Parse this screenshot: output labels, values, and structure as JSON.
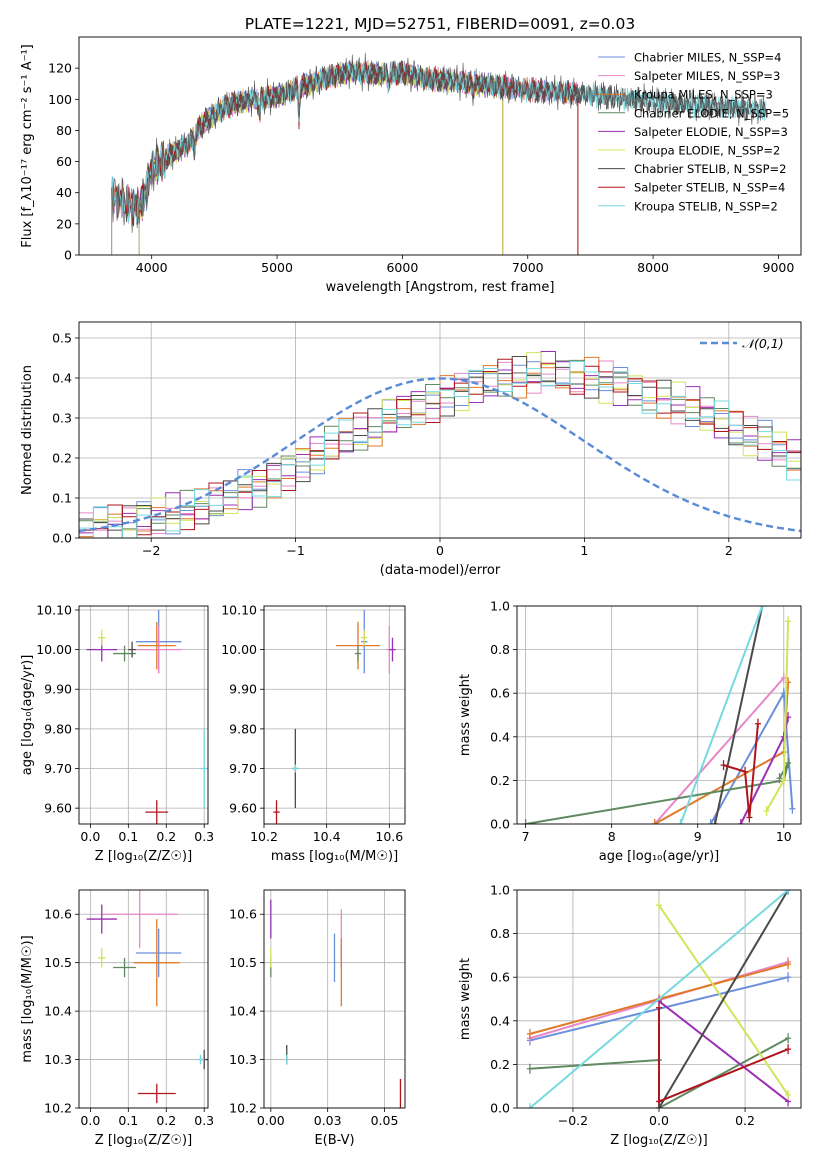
{
  "colors": [
    "#6b8fdc",
    "#e887c8",
    "#e07a2a",
    "#5f8a60",
    "#9b2fb5",
    "#d4e35a",
    "#4a4a4a",
    "#b0151e",
    "#76d9e0"
  ],
  "figure_title": "PLATE=1221, MJD=52751, FIBERID=0091, z=0.03",
  "chart_data": [
    {
      "id": "spectrum",
      "type": "line",
      "title": "PLATE=1221, MJD=52751, FIBERID=0091, z=0.03",
      "xlabel": "wavelength [Angstrom, rest frame]",
      "ylabel": "Flux [f_λ10⁻¹⁷ erg cm⁻² s⁻¹ A⁻¹]",
      "xlim": [
        3420,
        9180
      ],
      "ylim": [
        0,
        140
      ],
      "xticks": [
        4000,
        5000,
        6000,
        7000,
        8000,
        9000
      ],
      "yticks": [
        0,
        20,
        40,
        60,
        80,
        100,
        120
      ],
      "legend_position": "top-right",
      "legend": [
        "Chabrier MILES, N_SSP=4",
        "Salpeter MILES, N_SSP=3",
        "Kroupa MILES, N_SSP=3",
        "Chabrier ELODIE, N_SSP=5",
        "Salpeter ELODIE, N_SSP=3",
        "Kroupa ELODIE, N_SSP=2",
        "Chabrier STELIB, N_SSP=2",
        "Salpeter STELIB, N_SSP=4",
        "Kroupa STELIB, N_SSP=2"
      ],
      "continuum": {
        "x": [
          3680,
          3800,
          3900,
          3950,
          4000,
          4100,
          4200,
          4300,
          4400,
          4500,
          4600,
          4800,
          5000,
          5200,
          5400,
          5600,
          5800,
          6000,
          6200,
          6400,
          6600,
          6800,
          7000,
          7200,
          7500,
          7800,
          8000,
          8200,
          8400,
          8600,
          8800,
          8900
        ],
        "y": [
          38,
          33,
          30,
          40,
          55,
          62,
          67,
          72,
          84,
          90,
          96,
          100,
          102,
          108,
          114,
          118,
          116,
          117,
          113,
          112,
          110,
          108,
          106,
          105,
          103,
          100,
          99,
          97,
          96,
          95,
          94,
          93
        ]
      },
      "model_ranges": [
        {
          "series": "Chabrier MILES",
          "x_range": [
            3680,
            7400
          ]
        },
        {
          "series": "Salpeter MILES",
          "x_range": [
            3680,
            7400
          ]
        },
        {
          "series": "Kroupa MILES",
          "x_range": [
            3680,
            7400
          ]
        },
        {
          "series": "Chabrier ELODIE",
          "x_range": [
            3900,
            6800
          ]
        },
        {
          "series": "Salpeter ELODIE",
          "x_range": [
            3900,
            6800
          ]
        },
        {
          "series": "Kroupa ELODIE",
          "x_range": [
            3900,
            6800
          ]
        },
        {
          "series": "Chabrier STELIB",
          "x_range": [
            3680,
            8900
          ]
        },
        {
          "series": "Salpeter STELIB",
          "x_range": [
            3680,
            7400
          ]
        },
        {
          "series": "Kroupa STELIB",
          "x_range": [
            3680,
            8900
          ]
        }
      ]
    },
    {
      "id": "residuals",
      "type": "line",
      "xlabel": "(data-model)/error",
      "ylabel": "Normed distribution",
      "xlim": [
        -2.5,
        2.5
      ],
      "ylim": [
        0,
        0.54
      ],
      "xticks": [
        -2,
        -1,
        0,
        1,
        2
      ],
      "yticks": [
        0.0,
        0.1,
        0.2,
        0.3,
        0.4,
        0.5
      ],
      "grid": true,
      "legend_position": "top-right",
      "reference_curve": "𝒩(0,1)",
      "bin_width": 0.1,
      "bin_start": -2.5,
      "hist_base": [
        0.02,
        0.03,
        0.035,
        0.04,
        0.05,
        0.055,
        0.06,
        0.065,
        0.075,
        0.09,
        0.1,
        0.12,
        0.13,
        0.15,
        0.17,
        0.19,
        0.21,
        0.23,
        0.25,
        0.26,
        0.27,
        0.3,
        0.32,
        0.33,
        0.34,
        0.36,
        0.37,
        0.38,
        0.39,
        0.4,
        0.4,
        0.41,
        0.42,
        0.41,
        0.4,
        0.4,
        0.39,
        0.38,
        0.37,
        0.36,
        0.35,
        0.34,
        0.33,
        0.31,
        0.29,
        0.27,
        0.25,
        0.24,
        0.22,
        0.2,
        0.18,
        0.16,
        0.14,
        0.12,
        0.1,
        0.08,
        0.07,
        0.06,
        0.05,
        0.045,
        0.04,
        0.035,
        0.035,
        0.03,
        0.03,
        0.025,
        0.025,
        0.02,
        0.02,
        0.02,
        0.02,
        0.02,
        0.02,
        0.02,
        0.02,
        0.02,
        0.02,
        0.02,
        0.02,
        0.02,
        0.02,
        0.02,
        0.02,
        0.02,
        0.02,
        0.02,
        0.02,
        0.02,
        0.02,
        0.02,
        0.02,
        0.02,
        0.02,
        0.02,
        0.02,
        0.02,
        0.02,
        0.02,
        0.02,
        0.02
      ]
    },
    {
      "id": "age-vs-Z",
      "type": "scatter",
      "xlabel": "Z [log₁₀(Z/Z☉)]",
      "ylabel": "age  [log₁₀(age/yr)]",
      "xlim": [
        -0.03,
        0.31
      ],
      "ylim": [
        9.56,
        10.11
      ],
      "xticks": [
        0.0,
        0.1,
        0.2,
        0.3
      ],
      "yticks": [
        9.6,
        9.7,
        9.8,
        9.9,
        10.0,
        10.1
      ],
      "grid": true,
      "points": [
        {
          "series": 0,
          "x": 0.18,
          "y": 10.02,
          "xerr": 0.06,
          "yerr": 0.08
        },
        {
          "series": 1,
          "x": 0.18,
          "y": 10.0,
          "xerr": 0.06,
          "yerr": 0.06
        },
        {
          "series": 2,
          "x": 0.175,
          "y": 10.01,
          "xerr": 0.05,
          "yerr": 0.06
        },
        {
          "series": 3,
          "x": 0.09,
          "y": 9.99,
          "xerr": 0.03,
          "yerr": 0.02
        },
        {
          "series": 4,
          "x": 0.03,
          "y": 10.0,
          "xerr": 0.04,
          "yerr": 0.03
        },
        {
          "series": 5,
          "x": 0.03,
          "y": 10.03,
          "xerr": 0.01,
          "yerr": 0.02
        },
        {
          "series": 6,
          "x": 0.11,
          "y": 10.0,
          "xerr": 0.01,
          "yerr": 0.02
        },
        {
          "series": 7,
          "x": 0.175,
          "y": 9.59,
          "xerr": 0.03,
          "yerr": 0.03
        },
        {
          "series": 8,
          "x": 0.3,
          "y": 9.7,
          "xerr": 0.01,
          "yerr": 0.1
        }
      ]
    },
    {
      "id": "age-vs-mass",
      "type": "scatter",
      "xlabel": "mass [log₁₀(M/M☉)]",
      "xlim": [
        10.2,
        10.65
      ],
      "ylim": [
        9.56,
        10.11
      ],
      "xticks": [
        10.2,
        10.4,
        10.6
      ],
      "yticks": [
        9.6,
        9.7,
        9.8,
        9.9,
        10.0,
        10.1
      ],
      "grid": true,
      "points": [
        {
          "series": 0,
          "x": 10.52,
          "y": 10.02,
          "xerr": 0.01,
          "yerr": 0.08
        },
        {
          "series": 1,
          "x": 10.6,
          "y": 10.0,
          "xerr": 0.01,
          "yerr": 0.06
        },
        {
          "series": 2,
          "x": 10.5,
          "y": 10.01,
          "xerr": 0.07,
          "yerr": 0.06
        },
        {
          "series": 3,
          "x": 10.5,
          "y": 9.99,
          "xerr": 0.01,
          "yerr": 0.02
        },
        {
          "series": 4,
          "x": 10.61,
          "y": 10.0,
          "xerr": 0.01,
          "yerr": 0.03
        },
        {
          "series": 5,
          "x": 10.52,
          "y": 10.03,
          "xerr": 0.01,
          "yerr": 0.02
        },
        {
          "series": 6,
          "x": 10.3,
          "y": 9.7,
          "xerr": 0.01,
          "yerr": 0.1
        },
        {
          "series": 7,
          "x": 10.24,
          "y": 9.59,
          "xerr": 0.01,
          "yerr": 0.03
        },
        {
          "series": 8,
          "x": 10.3,
          "y": 9.7,
          "xerr": 0.01,
          "yerr": 0.01
        }
      ]
    },
    {
      "id": "mass-weight-vs-age",
      "type": "line",
      "xlabel": "age  [log₁₀(age/yr)]",
      "ylabel": "mass weight",
      "xlim": [
        6.9,
        10.2
      ],
      "ylim": [
        0,
        1.0
      ],
      "xticks": [
        7,
        8,
        9,
        10
      ],
      "yticks": [
        0.0,
        0.2,
        0.4,
        0.6,
        0.8,
        1.0
      ],
      "grid": true,
      "series": [
        {
          "color_index": 0,
          "x": [
            9.15,
            10.0,
            10.1
          ],
          "y": [
            0.0,
            0.6,
            0.07
          ]
        },
        {
          "color_index": 1,
          "x": [
            8.5,
            10.0
          ],
          "y": [
            0.0,
            0.67
          ]
        },
        {
          "color_index": 2,
          "x": [
            8.5,
            10.0,
            10.05
          ],
          "y": [
            0.0,
            0.33,
            0.65
          ]
        },
        {
          "color_index": 3,
          "x": [
            7.0,
            10.0,
            10.05,
            9.95
          ],
          "y": [
            0.0,
            0.2,
            0.28,
            0.21
          ]
        },
        {
          "color_index": 4,
          "x": [
            9.5,
            10.0,
            10.05
          ],
          "y": [
            0.0,
            0.4,
            0.49
          ]
        },
        {
          "color_index": 5,
          "x": [
            9.8,
            10.0,
            10.05
          ],
          "y": [
            0.06,
            0.2,
            0.93
          ]
        },
        {
          "color_index": 6,
          "x": [
            9.2,
            9.75
          ],
          "y": [
            0.0,
            1.0
          ]
        },
        {
          "color_index": 7,
          "x": [
            9.3,
            9.55,
            9.6,
            9.7
          ],
          "y": [
            0.27,
            0.24,
            0.03,
            0.46
          ]
        },
        {
          "color_index": 8,
          "x": [
            8.8,
            9.75
          ],
          "y": [
            0.0,
            1.0
          ]
        }
      ]
    },
    {
      "id": "mass-vs-Z",
      "type": "scatter",
      "xlabel": "Z [log₁₀(Z/Z☉)]",
      "ylabel": "mass [log₁₀(M/M☉)]",
      "xlim": [
        -0.03,
        0.31
      ],
      "ylim": [
        10.2,
        10.65
      ],
      "xticks": [
        0.0,
        0.1,
        0.2,
        0.3
      ],
      "yticks": [
        10.2,
        10.3,
        10.4,
        10.5,
        10.6
      ],
      "grid": true,
      "points": [
        {
          "series": 0,
          "x": 0.18,
          "y": 10.52,
          "xerr": 0.06,
          "yerr": 0.05
        },
        {
          "series": 1,
          "x": 0.13,
          "y": 10.6,
          "xerr": 0.1,
          "yerr": 0.07
        },
        {
          "series": 2,
          "x": 0.175,
          "y": 10.5,
          "xerr": 0.06,
          "yerr": 0.09
        },
        {
          "series": 3,
          "x": 0.09,
          "y": 10.49,
          "xerr": 0.03,
          "yerr": 0.02
        },
        {
          "series": 4,
          "x": 0.03,
          "y": 10.59,
          "xerr": 0.04,
          "yerr": 0.03
        },
        {
          "series": 5,
          "x": 0.03,
          "y": 10.51,
          "xerr": 0.01,
          "yerr": 0.02
        },
        {
          "series": 6,
          "x": 0.3,
          "y": 10.3,
          "xerr": 0.01,
          "yerr": 0.02
        },
        {
          "series": 7,
          "x": 0.175,
          "y": 10.23,
          "xerr": 0.05,
          "yerr": 0.02
        },
        {
          "series": 8,
          "x": 0.29,
          "y": 10.3,
          "xerr": 0.01,
          "yerr": 0.01
        }
      ]
    },
    {
      "id": "mass-vs-ebv",
      "type": "scatter",
      "xlabel": "E(B-V)",
      "xlim": [
        -0.003,
        0.059
      ],
      "ylim": [
        10.2,
        10.65
      ],
      "xticks": [
        0.0,
        0.025,
        0.05
      ],
      "yticks": [
        10.2,
        10.3,
        10.4,
        10.5,
        10.6
      ],
      "grid": true,
      "points": [
        {
          "series": 0,
          "x": 0.028,
          "y": 10.51,
          "xerr": 0,
          "yerr": 0.05
        },
        {
          "series": 1,
          "x": 0.031,
          "y": 10.55,
          "xerr": 0,
          "yerr": 0.06
        },
        {
          "series": 2,
          "x": 0.031,
          "y": 10.48,
          "xerr": 0,
          "yerr": 0.07
        },
        {
          "series": 3,
          "x": 0.0,
          "y": 10.49,
          "xerr": 0,
          "yerr": 0.02
        },
        {
          "series": 4,
          "x": 0.0,
          "y": 10.59,
          "xerr": 0,
          "yerr": 0.04
        },
        {
          "series": 5,
          "x": 0.0,
          "y": 10.51,
          "xerr": 0,
          "yerr": 0.02
        },
        {
          "series": 6,
          "x": 0.007,
          "y": 10.31,
          "xerr": 0,
          "yerr": 0.02
        },
        {
          "series": 7,
          "x": 0.057,
          "y": 10.23,
          "xerr": 0,
          "yerr": 0.03
        },
        {
          "series": 8,
          "x": 0.007,
          "y": 10.3,
          "xerr": 0,
          "yerr": 0.01
        }
      ]
    },
    {
      "id": "mass-weight-vs-Z",
      "type": "line",
      "xlabel": "Z [log₁₀(Z/Z☉)]",
      "ylabel": "mass weight",
      "xlim": [
        -0.33,
        0.33
      ],
      "ylim": [
        0,
        1.0
      ],
      "xticks": [
        -0.2,
        0.0,
        0.2
      ],
      "yticks": [
        0.0,
        0.2,
        0.4,
        0.6,
        0.8,
        1.0
      ],
      "grid": true,
      "series": [
        {
          "color_index": 0,
          "x": [
            -0.3,
            0.3
          ],
          "y": [
            0.31,
            0.6
          ]
        },
        {
          "color_index": 1,
          "x": [
            -0.3,
            0.3
          ],
          "y": [
            0.32,
            0.67
          ]
        },
        {
          "color_index": 2,
          "x": [
            -0.3,
            0.0,
            0.3
          ],
          "y": [
            0.34,
            0.5,
            0.66
          ]
        },
        {
          "color_index": 3,
          "x": [
            -0.3,
            0.0,
            0.0,
            0.3
          ],
          "y": [
            0.18,
            0.22,
            0.0,
            0.32
          ]
        },
        {
          "color_index": 4,
          "x": [
            0.0,
            0.3
          ],
          "y": [
            0.49,
            0.03
          ]
        },
        {
          "color_index": 5,
          "x": [
            0.0,
            0.3
          ],
          "y": [
            0.93,
            0.06
          ]
        },
        {
          "color_index": 6,
          "x": [
            0.0,
            0.3
          ],
          "y": [
            0.0,
            1.0
          ]
        },
        {
          "color_index": 7,
          "x": [
            0.0,
            0.0,
            0.3
          ],
          "y": [
            0.46,
            0.03,
            0.27
          ]
        },
        {
          "color_index": 8,
          "x": [
            -0.3,
            0.3
          ],
          "y": [
            0.0,
            1.0
          ]
        }
      ]
    }
  ]
}
